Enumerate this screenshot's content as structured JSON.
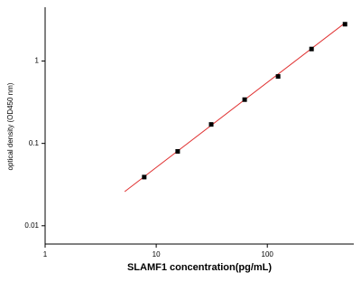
{
  "chart_data": {
    "type": "scatter",
    "x_label": "SLAMF1  concentration(pg/mL)",
    "y_label": "optical density (OD450 nm)",
    "xscale": "log",
    "yscale": "log",
    "xlim": [
      1,
      600
    ],
    "ylim": [
      0.006,
      4.5
    ],
    "xticks": [
      1,
      10,
      100
    ],
    "yticks": [
      0.01,
      0.1,
      1
    ],
    "series": [
      {
        "type": "scatter",
        "color": "#000000",
        "x": [
          7.8,
          15.6,
          31.25,
          62.5,
          125,
          250,
          500
        ],
        "values": [
          0.039,
          0.08,
          0.17,
          0.34,
          0.65,
          1.4,
          2.8
        ]
      },
      {
        "type": "line",
        "color": "#e03030",
        "x": [
          5.2,
          500
        ],
        "values": [
          0.026,
          2.9
        ]
      }
    ]
  }
}
